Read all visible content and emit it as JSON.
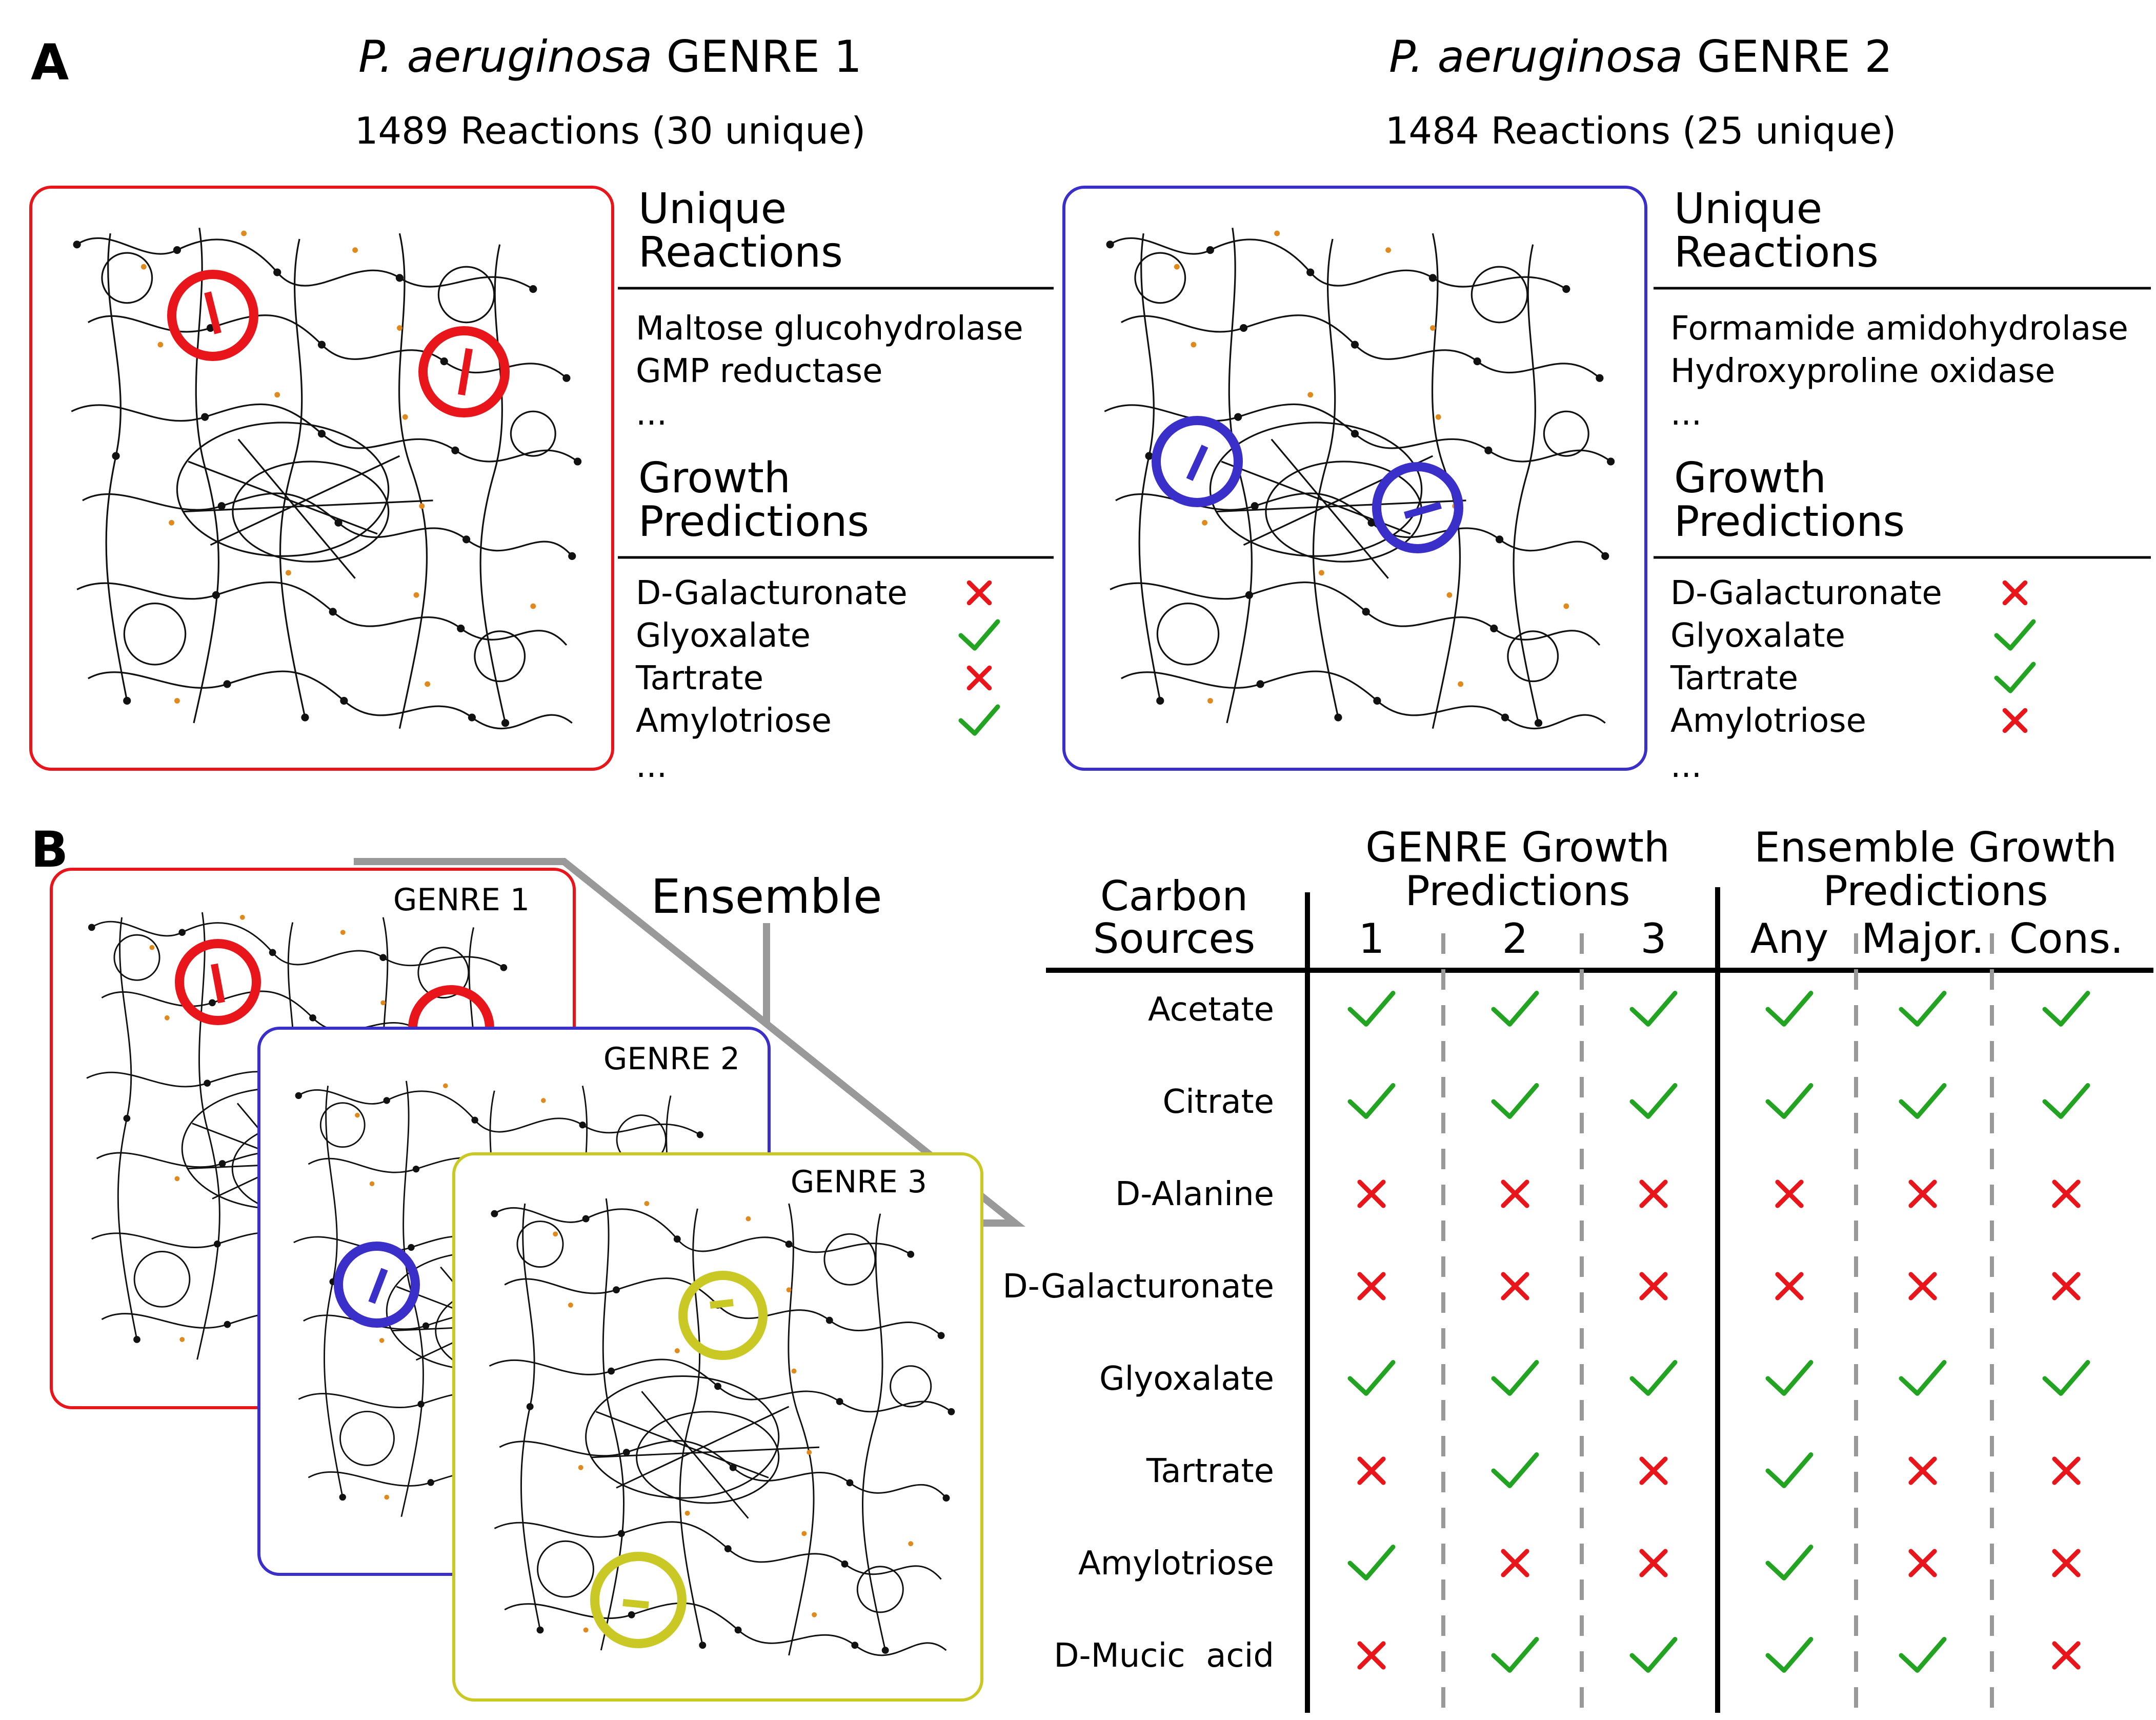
{
  "colors": {
    "genre1": "#e8151b",
    "genre2": "#3a2fc9",
    "genre3": "#c9c824",
    "check": "#22a321",
    "cross": "#e8151b",
    "network": "#111111",
    "connector": "#999999",
    "divider": "#000000"
  },
  "panel_a": {
    "letter": "A",
    "genre1": {
      "title_italic": "P. aeruginosa",
      "title_rest": " GENRE 1",
      "subtitle": "1489 Reactions (30 unique)",
      "unique_heading_1": "Unique",
      "unique_heading_2": "Reactions",
      "reactions": [
        "Maltose glucohydrolase",
        "GMP reductase",
        "..."
      ],
      "growth_heading_1": "Growth",
      "growth_heading_2": "Predictions",
      "predictions": [
        {
          "label": "D-Galacturonate",
          "result": "cross"
        },
        {
          "label": "Glyoxalate",
          "result": "check"
        },
        {
          "label": "Tartrate",
          "result": "cross"
        },
        {
          "label": "Amylotriose",
          "result": "check"
        }
      ],
      "predictions_more": "...",
      "network_icon": "metabolic-network-map",
      "highlight_icon": "highlight-circle-arrow"
    },
    "genre2": {
      "title_italic": "P. aeruginosa",
      "title_rest": " GENRE 2",
      "subtitle": "1484 Reactions (25 unique)",
      "unique_heading_1": "Unique",
      "unique_heading_2": "Reactions",
      "reactions": [
        "Formamide amidohydrolase",
        "Hydroxyproline oxidase",
        "..."
      ],
      "growth_heading_1": "Growth",
      "growth_heading_2": "Predictions",
      "predictions": [
        {
          "label": "D-Galacturonate",
          "result": "cross"
        },
        {
          "label": "Glyoxalate",
          "result": "check"
        },
        {
          "label": "Tartrate",
          "result": "check"
        },
        {
          "label": "Amylotriose",
          "result": "cross"
        }
      ],
      "predictions_more": "...",
      "network_icon": "metabolic-network-map",
      "highlight_icon": "highlight-circle-arrow"
    }
  },
  "panel_b": {
    "letter": "B",
    "ensemble_label": "Ensemble",
    "stack_labels": [
      "GENRE 1",
      "GENRE 2",
      "GENRE 3"
    ],
    "table": {
      "header_carbon_1": "Carbon",
      "header_carbon_2": "Sources",
      "header_genre_1": "GENRE Growth",
      "header_genre_2": "Predictions",
      "header_ensemble_1": "Ensemble Growth",
      "header_ensemble_2": "Predictions",
      "columns": [
        "1",
        "2",
        "3",
        "Any",
        "Major.",
        "Cons."
      ],
      "rows": [
        {
          "label": "Acetate",
          "values": [
            "check",
            "check",
            "check",
            "check",
            "check",
            "check"
          ]
        },
        {
          "label": "Citrate",
          "values": [
            "check",
            "check",
            "check",
            "check",
            "check",
            "check"
          ]
        },
        {
          "label": "D-Alanine",
          "values": [
            "cross",
            "cross",
            "cross",
            "cross",
            "cross",
            "cross"
          ]
        },
        {
          "label": "D-Galacturonate",
          "values": [
            "cross",
            "cross",
            "cross",
            "cross",
            "cross",
            "cross"
          ]
        },
        {
          "label": "Glyoxalate",
          "values": [
            "check",
            "check",
            "check",
            "check",
            "check",
            "check"
          ]
        },
        {
          "label": "Tartrate",
          "values": [
            "cross",
            "check",
            "cross",
            "check",
            "cross",
            "cross"
          ]
        },
        {
          "label": "Amylotriose",
          "values": [
            "check",
            "cross",
            "cross",
            "check",
            "cross",
            "cross"
          ]
        },
        {
          "label": "D-Mucic  acid",
          "values": [
            "cross",
            "check",
            "check",
            "check",
            "check",
            "cross"
          ]
        }
      ]
    }
  }
}
